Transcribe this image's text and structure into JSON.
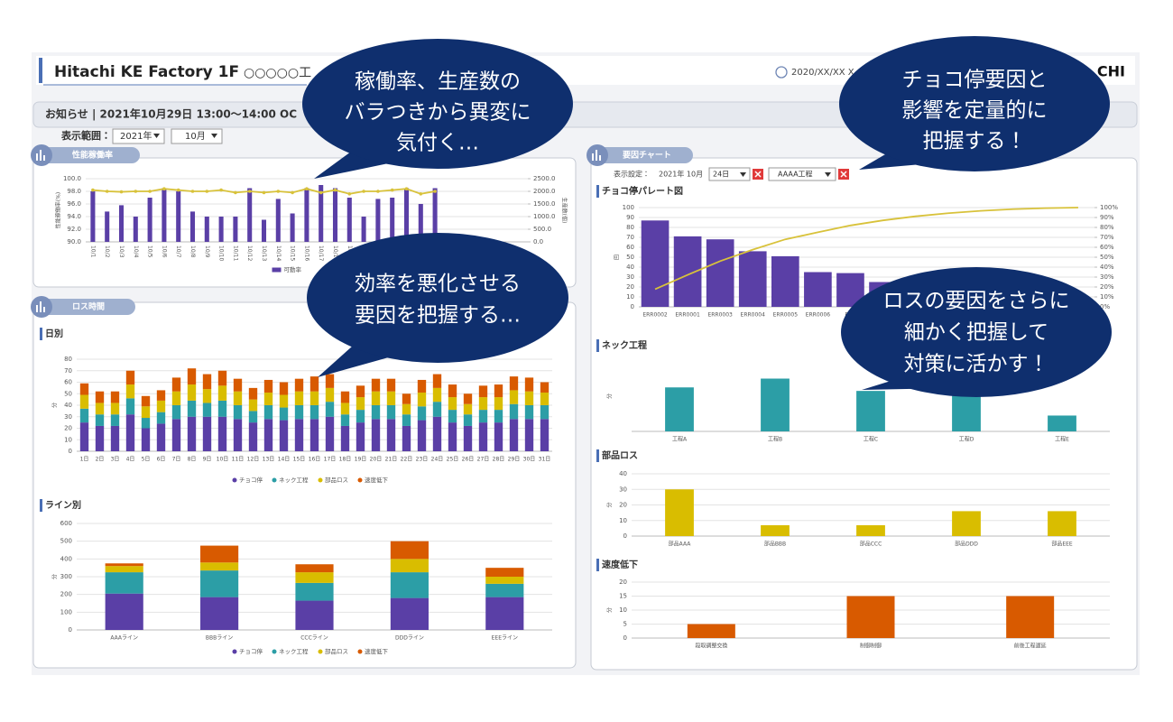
{
  "header": {
    "title": "Hitachi KE Factory 1F",
    "subtitle": "○○○○○工",
    "datetime": "2020/XX/XX X",
    "logo": "CHI"
  },
  "notice": "お知らせ | 2021年10月29日 13:00～14:00 OC",
  "filters": {
    "label": "表示範囲：",
    "year": "2021年",
    "month": "10月"
  },
  "panels": [
    {
      "title": "性能稼働率",
      "charts": [
        {
          "type": "combo",
          "ylabel": "性能稼働率(%)",
          "y2label": "生産数(個)",
          "categories": [
            "10/1",
            "10/2",
            "10/3",
            "10/4",
            "10/5",
            "10/6",
            "10/7",
            "10/8",
            "10/9",
            "10/10",
            "10/11",
            "10/12",
            "10/13",
            "10/14",
            "10/15",
            "10/16",
            "10/17",
            "10/18",
            "10/19",
            "10/20",
            "10/21",
            "10/22",
            "10/23",
            "10/24",
            "10/25"
          ],
          "ylim": [
            90,
            100
          ],
          "yticks": [
            {
              "value": 90,
              "label": "90.0"
            },
            {
              "value": 92,
              "label": "92.0"
            },
            {
              "value": 94,
              "label": "94.0"
            },
            {
              "value": 96,
              "label": "96.0"
            },
            {
              "value": 98,
              "label": "98.0"
            },
            {
              "value": 100,
              "label": "100.0"
            }
          ],
          "y2lim": [
            0,
            2500
          ],
          "y2ticks": [
            {
              "value": 0,
              "label": "0.0"
            },
            {
              "value": 500,
              "label": "500.0"
            },
            {
              "value": 1000,
              "label": "1000.0"
            },
            {
              "value": 1500,
              "label": "1500.0"
            },
            {
              "value": 2000,
              "label": "2000.0"
            },
            {
              "value": 2500,
              "label": "2500.0"
            }
          ],
          "grid": true,
          "series": [
            {
              "name": "可動率",
              "color": "#5a3fa6",
              "values": [
                98,
                94.8,
                95.8,
                94,
                97,
                98.5,
                98,
                94.8,
                94,
                94,
                94,
                98.5,
                93.5,
                96.8,
                94.5,
                98.5,
                99,
                98.5,
                97,
                94,
                96.8,
                97,
                98.5,
                96,
                98.5
              ]
            },
            {
              "color": "#d8c23a",
              "axis": "y2",
              "values": [
                2050,
                2000,
                1980,
                2000,
                2000,
                2100,
                2050,
                2000,
                2000,
                2050,
                1950,
                2000,
                1950,
                2000,
                1950,
                2100,
                1950,
                2050,
                1900,
                2000,
                2000,
                2050,
                2100,
                1900,
                2000
              ]
            }
          ]
        }
      ]
    },
    {
      "title": "ロス時間",
      "charts": [
        {
          "type": "stacked_bar",
          "title": "日別",
          "ylabel": "分",
          "categories": [
            "1日",
            "2日",
            "3日",
            "4日",
            "5日",
            "6日",
            "7日",
            "8日",
            "9日",
            "10日",
            "11日",
            "12日",
            "13日",
            "14日",
            "15日",
            "16日",
            "17日",
            "18日",
            "19日",
            "20日",
            "21日",
            "22日",
            "23日",
            "24日",
            "25日",
            "26日",
            "27日",
            "28日",
            "29日",
            "30日",
            "31日"
          ],
          "ylim": [
            0,
            80
          ],
          "yticks": [
            0,
            10,
            20,
            30,
            40,
            50,
            60,
            70,
            80
          ],
          "grid": true,
          "series": [
            {
              "name": "チョコ停",
              "color": "#5a3fa6",
              "values": [
                25,
                22,
                22,
                32,
                20,
                24,
                28,
                30,
                30,
                30,
                28,
                25,
                28,
                27,
                28,
                28,
                30,
                22,
                25,
                28,
                28,
                22,
                27,
                30,
                25,
                22,
                25,
                25,
                28,
                28,
                28
              ]
            },
            {
              "name": "ネック工程",
              "color": "#2c9ea6",
              "values": [
                12,
                10,
                10,
                14,
                9,
                10,
                12,
                14,
                12,
                14,
                12,
                10,
                12,
                11,
                12,
                12,
                13,
                10,
                11,
                12,
                12,
                10,
                12,
                13,
                11,
                10,
                11,
                11,
                13,
                12,
                12
              ]
            },
            {
              "name": "部品ロス",
              "color": "#d9bd00",
              "values": [
                12,
                10,
                10,
                12,
                10,
                10,
                12,
                14,
                12,
                13,
                12,
                10,
                11,
                11,
                12,
                12,
                12,
                10,
                11,
                12,
                12,
                9,
                12,
                12,
                11,
                9,
                11,
                11,
                12,
                12,
                11
              ]
            },
            {
              "name": "速度低下",
              "color": "#d85a00",
              "values": [
                10,
                10,
                10,
                12,
                9,
                9,
                12,
                14,
                13,
                13,
                11,
                10,
                11,
                11,
                11,
                13,
                12,
                10,
                10,
                11,
                11,
                9,
                11,
                12,
                11,
                9,
                10,
                11,
                12,
                12,
                9
              ]
            }
          ]
        },
        {
          "type": "stacked_bar",
          "title": "ライン別",
          "ylabel": "分",
          "categories": [
            "AAAライン",
            "BBBライン",
            "CCCライン",
            "DDDライン",
            "EEEライン"
          ],
          "ylim": [
            0,
            600
          ],
          "yticks": [
            0,
            100,
            200,
            300,
            400,
            500,
            600
          ],
          "grid": true,
          "series": [
            {
              "name": "チョコ停",
              "color": "#5a3fa6",
              "values": [
                205,
                185,
                165,
                180,
                185
              ]
            },
            {
              "name": "ネック工程",
              "color": "#2c9ea6",
              "values": [
                120,
                150,
                100,
                145,
                75
              ]
            },
            {
              "name": "部品ロス",
              "color": "#d9bd00",
              "values": [
                35,
                45,
                60,
                75,
                40
              ]
            },
            {
              "name": "速度低下",
              "color": "#d85a00",
              "values": [
                15,
                95,
                45,
                100,
                50
              ]
            }
          ]
        }
      ]
    },
    {
      "title": "要因チャート",
      "settings": {
        "label": "表示設定：",
        "period": "2021年 10月",
        "day": "24日",
        "process": "AAAA工程"
      },
      "charts": [
        {
          "type": "combo",
          "title": "チョコ停パレート図",
          "ylabel": "回",
          "categories": [
            "ERR0002",
            "ERR0001",
            "ERR0003",
            "ERR0004",
            "ERR0005",
            "ERR0006",
            "ERR",
            null,
            null,
            null,
            null,
            null,
            null,
            null
          ],
          "ylim": [
            0,
            100
          ],
          "yticks": [
            0,
            10,
            20,
            30,
            40,
            50,
            60,
            70,
            80,
            90,
            100
          ],
          "y2lim": [
            0,
            100
          ],
          "y2ticks": [
            {
              "value": 0,
              "label": "0%"
            },
            {
              "value": 10,
              "label": "10%"
            },
            {
              "value": 20,
              "label": "20%"
            },
            {
              "value": 30,
              "label": "30%"
            },
            {
              "value": 40,
              "label": "40%"
            },
            {
              "value": 50,
              "label": "50%"
            },
            {
              "value": 60,
              "label": "60%"
            },
            {
              "value": 70,
              "label": "70%"
            },
            {
              "value": 80,
              "label": "80%"
            },
            {
              "value": 90,
              "label": "90%"
            },
            {
              "value": 100,
              "label": "100%"
            }
          ],
          "grid": true,
          "series": [
            {
              "color": "#5a3fa6",
              "values": [
                87,
                71,
                68,
                56,
                51,
                35,
                34,
                25,
                20,
                15,
                12,
                8,
                5,
                3
              ]
            },
            {
              "color": "#d8c23a",
              "axis": "y2",
              "values": [
                17.8,
                32.2,
                46.1,
                57.6,
                68.0,
                75.1,
                82.0,
                87.1,
                91.2,
                94.3,
                96.7,
                98.4,
                99.4,
                100
              ]
            }
          ]
        },
        {
          "type": "bar",
          "title": "ネック工程",
          "ylabel": "分",
          "categories": [
            "工程A",
            "工程B",
            "工程C",
            "工程D",
            "工程E"
          ],
          "values": [
            25,
            30,
            23,
            24,
            9
          ],
          "color": "#2c9ea6",
          "ylim": [
            0,
            40
          ],
          "grid": false
        },
        {
          "type": "bar",
          "title": "部品ロス",
          "ylabel": "分",
          "categories": [
            "部品AAA",
            "部品BBB",
            "部品CCC",
            "部品DDD",
            "部品EEE"
          ],
          "values": [
            30,
            7,
            7,
            16,
            16
          ],
          "color": "#d9bd00",
          "ylim": [
            0,
            40
          ],
          "yticks": [
            0,
            10,
            20,
            30,
            40
          ],
          "grid": true
        },
        {
          "type": "bar",
          "title": "速度低下",
          "ylabel": "分",
          "categories": [
            "段取調整交換",
            "制御制御",
            "前後工程遅延"
          ],
          "values": [
            5,
            15,
            15
          ],
          "color": "#d85a00",
          "ylim": [
            0,
            20
          ],
          "yticks": [
            0,
            5,
            10,
            15,
            20
          ],
          "grid": true
        }
      ]
    }
  ],
  "callouts": [
    {
      "lines": [
        "稼働率、生産数の",
        "バラつきから異変に",
        "気付く…"
      ]
    },
    {
      "lines": [
        "チョコ停要因と",
        "影響を定量的に",
        "把握する！"
      ]
    },
    {
      "lines": [
        "効率を悪化させる",
        "要因を把握する…"
      ]
    },
    {
      "lines": [
        "ロスの要因をさらに",
        "細かく把握して",
        "対策に活かす！"
      ]
    }
  ]
}
